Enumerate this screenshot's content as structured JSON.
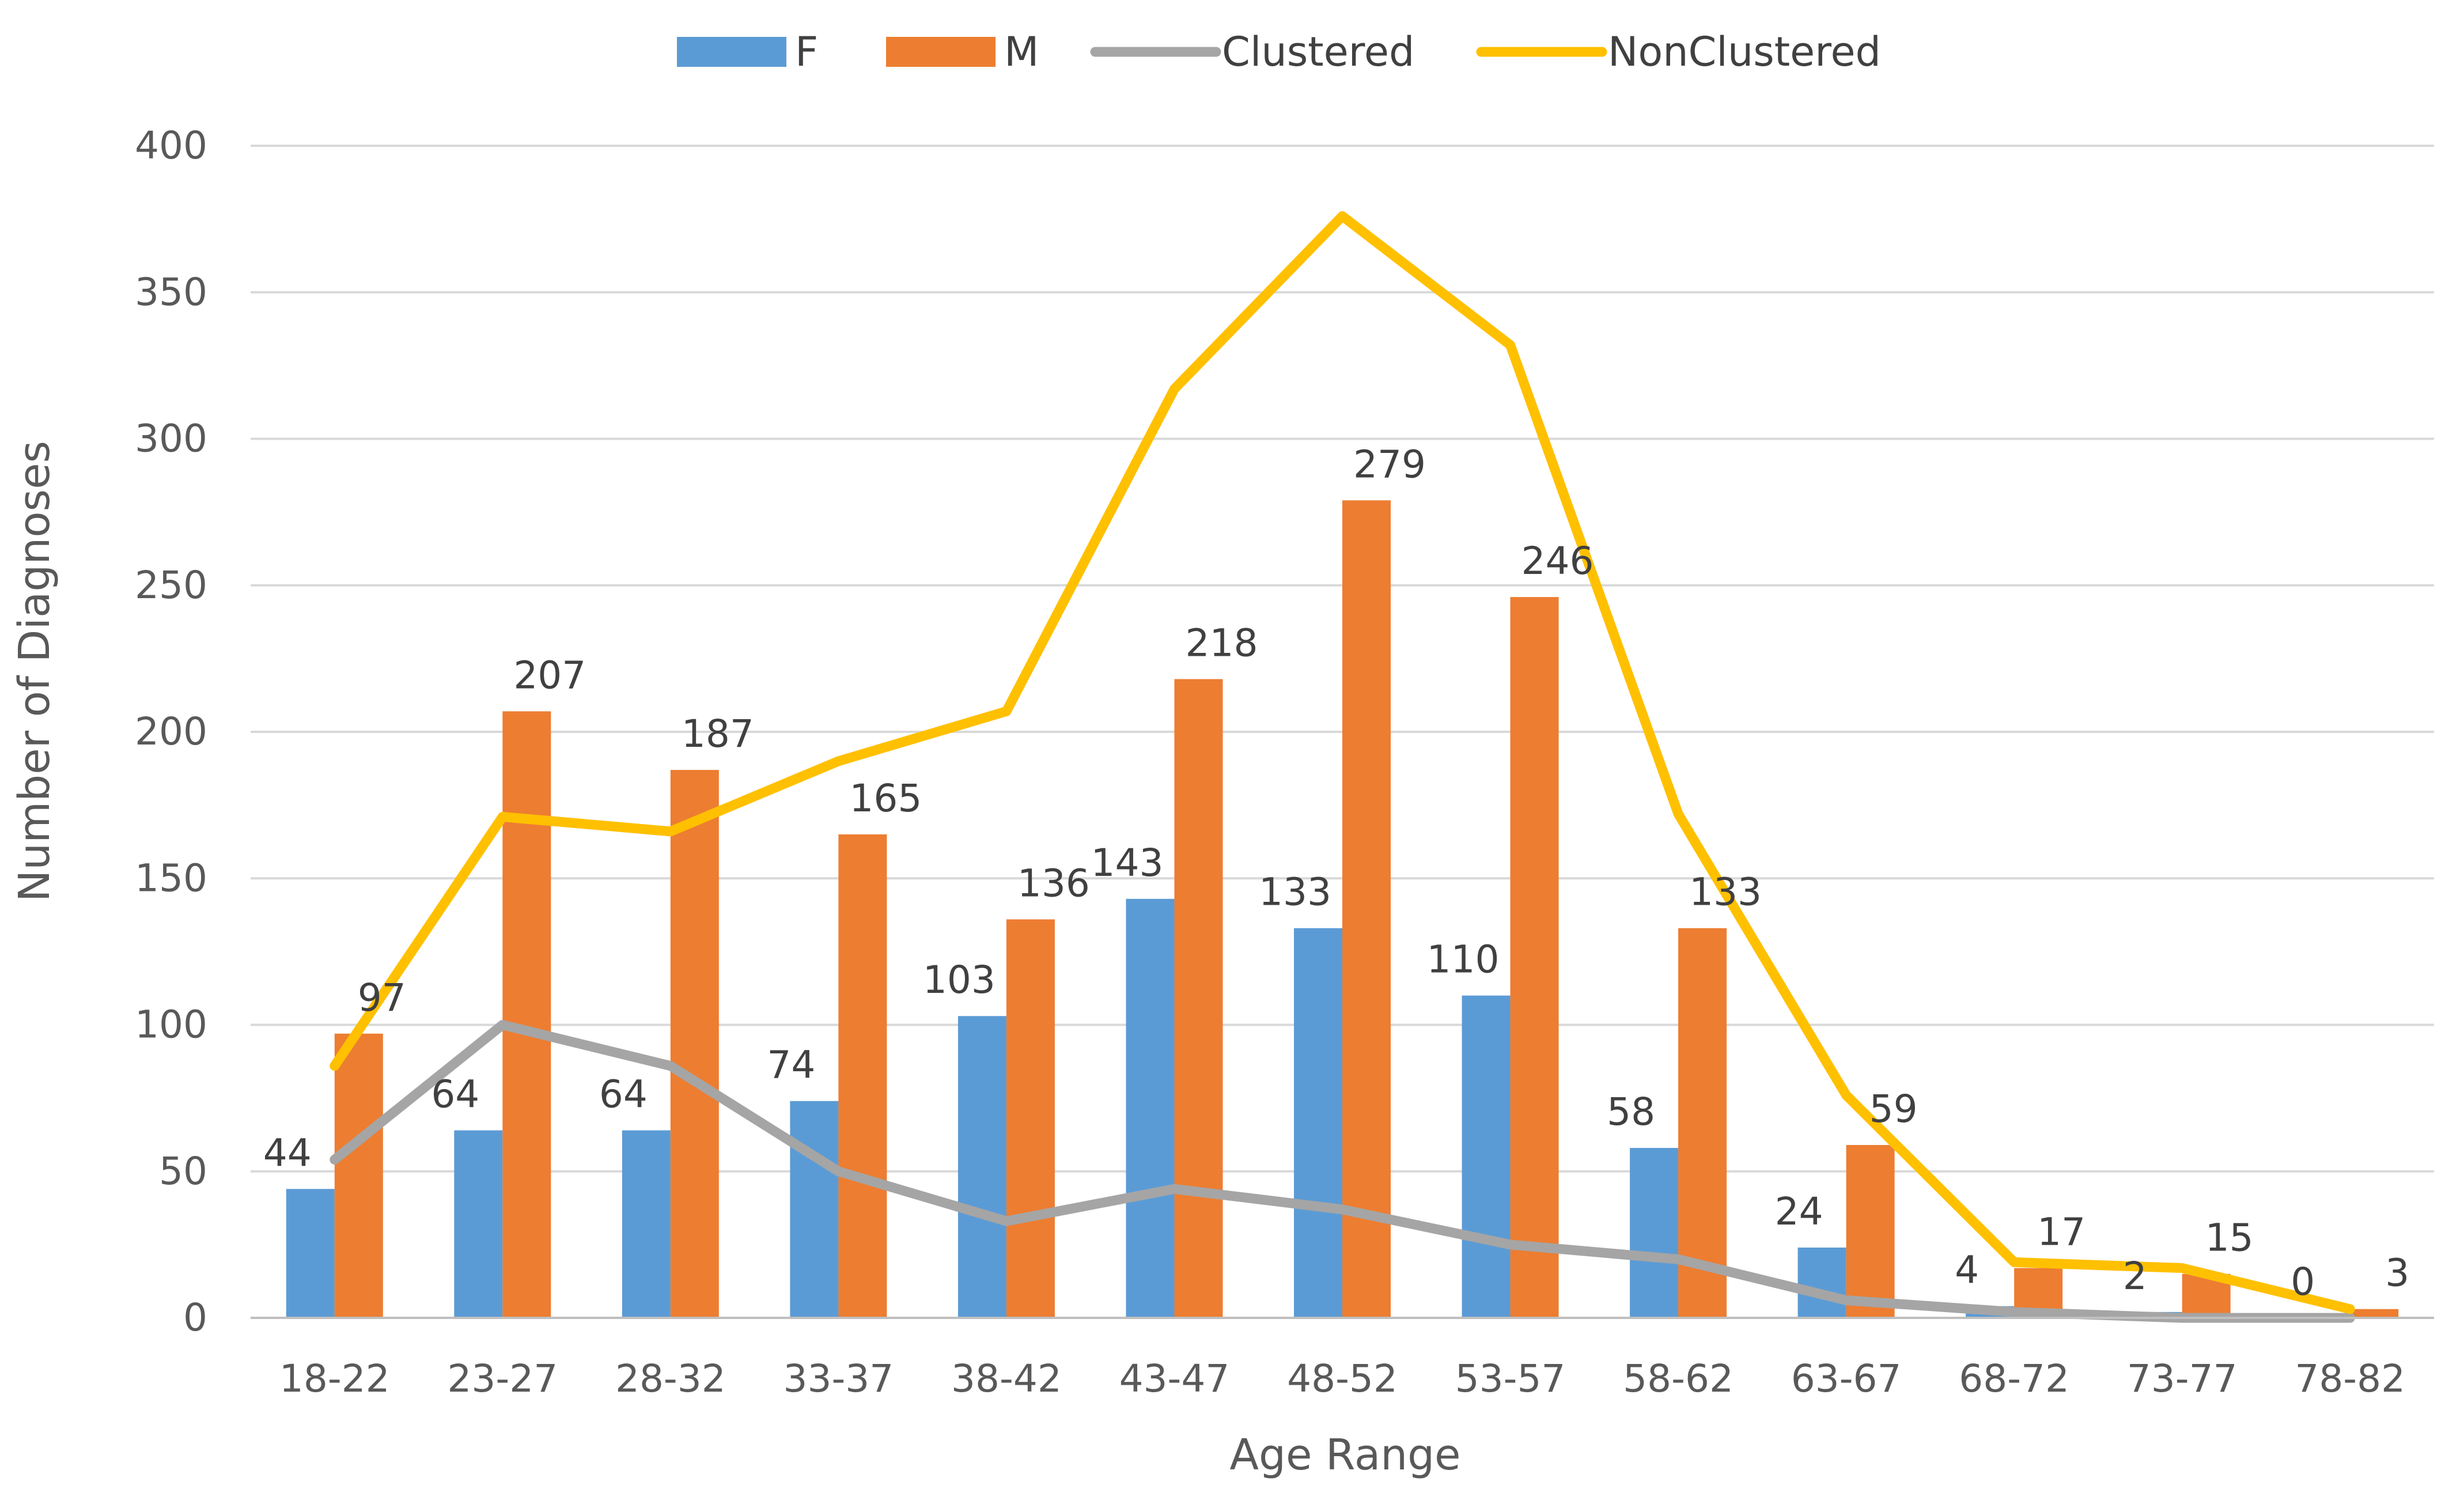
{
  "chart_data": {
    "type": "bar",
    "title": "",
    "xlabel": "Age Range",
    "ylabel": "Number of Diagnoses",
    "ylim": [
      0,
      400
    ],
    "yticks": [
      0,
      50,
      100,
      150,
      200,
      250,
      300,
      350,
      400
    ],
    "grid": true,
    "legend_position": "top-center",
    "categories": [
      "18-22",
      "23-27",
      "28-32",
      "33-37",
      "38-42",
      "43-47",
      "48-52",
      "53-57",
      "58-62",
      "63-67",
      "68-72",
      "73-77",
      "78-82"
    ],
    "series": [
      {
        "name": "F",
        "kind": "bar",
        "color": "#5B9BD5",
        "values": [
          44,
          64,
          64,
          74,
          103,
          143,
          133,
          110,
          58,
          24,
          4,
          2,
          0
        ],
        "labels": [
          "44",
          "64",
          "64",
          "74",
          "103",
          "143",
          "133",
          "110",
          "58",
          "24",
          "4",
          "2",
          "0"
        ]
      },
      {
        "name": "M",
        "kind": "bar",
        "color": "#ED7D31",
        "values": [
          97,
          207,
          187,
          165,
          136,
          218,
          279,
          246,
          133,
          59,
          17,
          15,
          3
        ],
        "labels": [
          "97",
          "207",
          "187",
          "165",
          "136",
          "218",
          "279",
          "246",
          "133",
          "59",
          "17",
          "15",
          "3"
        ]
      },
      {
        "name": "Clustered",
        "kind": "line",
        "color": "#A5A5A5",
        "values": [
          54,
          100,
          86,
          50,
          33,
          44,
          37,
          25,
          20,
          6,
          2,
          0,
          0
        ]
      },
      {
        "name": "NonClustered",
        "kind": "line",
        "color": "#FFC000",
        "values": [
          86,
          171,
          166,
          190,
          207,
          317,
          376,
          332,
          172,
          76,
          19,
          17,
          3
        ]
      }
    ]
  }
}
